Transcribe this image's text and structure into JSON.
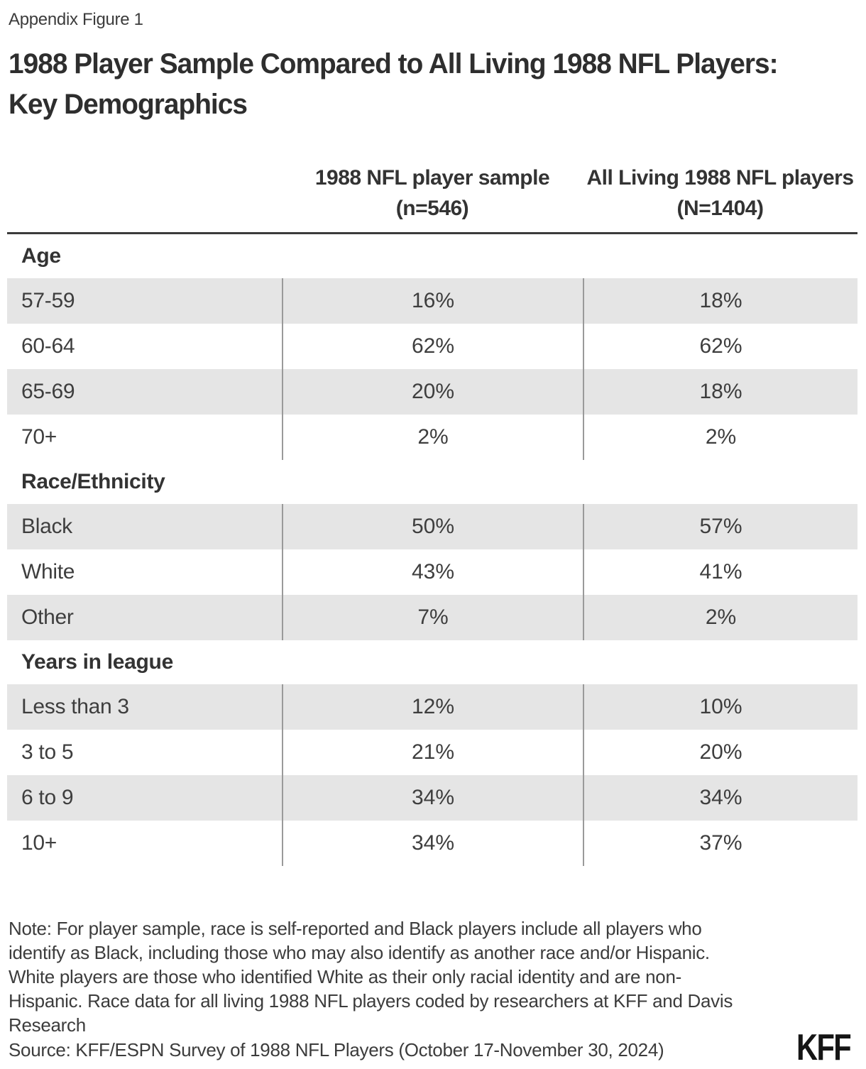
{
  "figure_label": "Appendix Figure 1",
  "title": {
    "lines": [
      "1988 Player Sample Compared to All Living 1988 NFL Players:",
      "Key Demographics"
    ]
  },
  "table": {
    "column_headers": [
      "1988 NFL player sample (n=546)",
      "All Living 1988 NFL players (N=1404)"
    ],
    "sections": [
      {
        "header": "Age",
        "rows": [
          {
            "label": "57-59",
            "sample": "16%",
            "all": "18%"
          },
          {
            "label": "60-64",
            "sample": "62%",
            "all": "62%"
          },
          {
            "label": "65-69",
            "sample": "20%",
            "all": "18%"
          },
          {
            "label": "70+",
            "sample": "2%",
            "all": "2%"
          }
        ]
      },
      {
        "header": "Race/Ethnicity",
        "rows": [
          {
            "label": "Black",
            "sample": "50%",
            "all": "57%"
          },
          {
            "label": "White",
            "sample": "43%",
            "all": "41%"
          },
          {
            "label": "Other",
            "sample": "7%",
            "all": "2%"
          }
        ]
      },
      {
        "header": "Years in league",
        "rows": [
          {
            "label": "Less than 3",
            "sample": "12%",
            "all": "10%"
          },
          {
            "label": "3 to 5",
            "sample": "21%",
            "all": "20%"
          },
          {
            "label": "6 to 9",
            "sample": "34%",
            "all": "34%"
          },
          {
            "label": "10+",
            "sample": "34%",
            "all": "37%"
          }
        ]
      }
    ]
  },
  "note": {
    "lines": [
      "Note: For player sample, race is self-reported and Black players include all players who",
      "identify as Black, including those who may also identify as another race and/or Hispanic.",
      "White players are those who identified White as their only racial identity and are non-",
      "Hispanic. Race data for all living 1988 NFL players coded by researchers at KFF and Davis",
      "Research"
    ]
  },
  "source": "Source: KFF/ESPN Survey of 1988 NFL Players (October 17-November 30, 2024)",
  "logo_text": "KFF",
  "colors": {
    "row_shade": "#e5e5e5",
    "divider": "#9a9a9a",
    "header_rule": "#3b3b3b",
    "text": "#3c3c3c"
  },
  "chart_data": {
    "type": "table",
    "title": "1988 Player Sample Compared to All Living 1988 NFL Players: Key Demographics",
    "columns": [
      "1988 NFL player sample (n=546)",
      "All Living 1988 NFL players (N=1404)"
    ],
    "units": "percent",
    "sections": [
      {
        "name": "Age",
        "rows": [
          {
            "category": "57-59",
            "sample_pct": 16,
            "all_living_pct": 18
          },
          {
            "category": "60-64",
            "sample_pct": 62,
            "all_living_pct": 62
          },
          {
            "category": "65-69",
            "sample_pct": 20,
            "all_living_pct": 18
          },
          {
            "category": "70+",
            "sample_pct": 2,
            "all_living_pct": 2
          }
        ]
      },
      {
        "name": "Race/Ethnicity",
        "rows": [
          {
            "category": "Black",
            "sample_pct": 50,
            "all_living_pct": 57
          },
          {
            "category": "White",
            "sample_pct": 43,
            "all_living_pct": 41
          },
          {
            "category": "Other",
            "sample_pct": 7,
            "all_living_pct": 2
          }
        ]
      },
      {
        "name": "Years in league",
        "rows": [
          {
            "category": "Less than 3",
            "sample_pct": 12,
            "all_living_pct": 10
          },
          {
            "category": "3 to 5",
            "sample_pct": 21,
            "all_living_pct": 20
          },
          {
            "category": "6 to 9",
            "sample_pct": 34,
            "all_living_pct": 34
          },
          {
            "category": "10+",
            "sample_pct": 34,
            "all_living_pct": 37
          }
        ]
      }
    ]
  }
}
